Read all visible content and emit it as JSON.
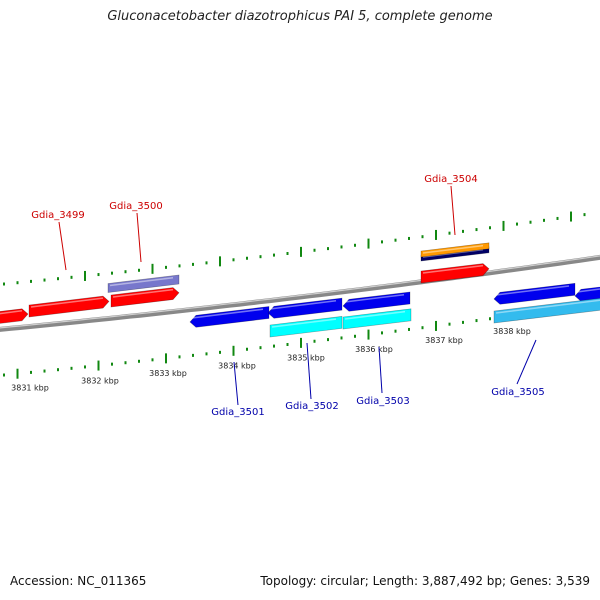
{
  "title": "Gluconacetobacter diazotrophicus PAI 5, complete genome",
  "footer": {
    "accession": "Accession: NC_011365",
    "summary": "Topology: circular; Length: 3,887,492 bp; Genes: 3,539"
  },
  "colors": {
    "fwd_gene": "#ff0000",
    "fwd_cds_alt": "#7777cc",
    "fwd_orange": "#ff9900",
    "fwd_navy": "#000066",
    "rev_gene": "#0000ee",
    "rev_cyan": "#00ffff",
    "rev_lightblue": "#33bbee",
    "tick": "#118811",
    "backbone": "#888888",
    "label_fwd": "#cc0000",
    "label_rev": "#0000aa"
  },
  "ruler": {
    "ticks": [
      {
        "label": "3831 kbp"
      },
      {
        "label": "3832 kbp"
      },
      {
        "label": "3833 kbp"
      },
      {
        "label": "3834 kbp"
      },
      {
        "label": "3835 kbp"
      },
      {
        "label": "3836 kbp"
      },
      {
        "label": "3837 kbp"
      },
      {
        "label": "3838 kbp"
      }
    ]
  },
  "gene_labels": [
    {
      "text": "Gdia_3499",
      "strand": "fwd"
    },
    {
      "text": "Gdia_3500",
      "strand": "fwd"
    },
    {
      "text": "Gdia_3504",
      "strand": "fwd"
    },
    {
      "text": "Gdia_3501",
      "strand": "rev"
    },
    {
      "text": "Gdia_3502",
      "strand": "rev"
    },
    {
      "text": "Gdia_3503",
      "strand": "rev"
    },
    {
      "text": "Gdia_3505",
      "strand": "rev"
    }
  ]
}
